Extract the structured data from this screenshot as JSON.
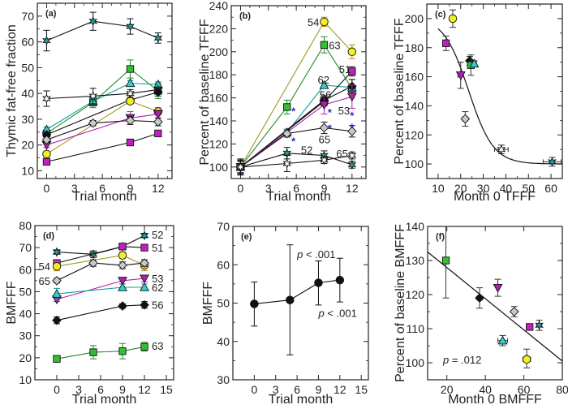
{
  "figure": {
    "panel_labels": [
      "(a)",
      "(b)",
      "(c)",
      "(d)",
      "(e)",
      "(f)"
    ]
  },
  "subjects": {
    "s51": {
      "label": "51",
      "marker": "square",
      "color": "#c020c0",
      "line": "#111111"
    },
    "s52": {
      "label": "52",
      "marker": "star",
      "color": "#20a0a0",
      "line": "#111111"
    },
    "s53": {
      "label": "53",
      "marker": "triangle-down",
      "color": "#b020b0",
      "line": "#b020b0"
    },
    "s54": {
      "label": "54",
      "marker": "circle",
      "color": "#f0f020",
      "line": "#a09820"
    },
    "s56": {
      "label": "56",
      "marker": "diamond",
      "color": "#111111",
      "line": "#111111"
    },
    "s62": {
      "label": "62",
      "marker": "triangle-up",
      "color": "#30d0d0",
      "line": "#1a9a9a"
    },
    "s63": {
      "label": "63",
      "marker": "square",
      "color": "#30c030",
      "line": "#208a30"
    },
    "s65a": {
      "label": "65",
      "marker": "diamond",
      "color": "#c8c8c8",
      "line": "#111111"
    },
    "s65b": {
      "label": "65",
      "marker": "star",
      "color": "#ffffff",
      "line": "#111111"
    }
  },
  "chart_data": [
    {
      "id": "a",
      "type": "line",
      "panel_label": "(a)",
      "xlabel": "Trial month",
      "ylabel": "Thymic fat-free fraction",
      "xlim": [
        -1,
        13.5
      ],
      "ylim": [
        7,
        75
      ],
      "xticks": [
        0,
        3,
        6,
        9,
        12
      ],
      "yticks": [
        10,
        20,
        30,
        40,
        50,
        60,
        70
      ],
      "series": [
        {
          "subject": "s52",
          "x": [
            0,
            5,
            9,
            12
          ],
          "y": [
            60.5,
            68,
            66,
            61.5
          ],
          "err": [
            4,
            3.5,
            3,
            2
          ]
        },
        {
          "subject": "s63",
          "x": [
            0,
            5,
            9,
            12
          ],
          "y": [
            24.5,
            36.5,
            49.5,
            41
          ],
          "err": [
            1,
            2,
            3.5,
            3
          ]
        },
        {
          "subject": "s62",
          "x": [
            0,
            5,
            9,
            12
          ],
          "y": [
            26,
            37,
            44,
            43.5
          ],
          "err": [
            1,
            1,
            1,
            1
          ]
        },
        {
          "subject": "s65b",
          "x": [
            0,
            5,
            9,
            12
          ],
          "y": [
            38,
            39,
            40,
            41.5
          ],
          "err": [
            3,
            3,
            1.5,
            1
          ]
        },
        {
          "subject": "s56",
          "x": [
            0,
            9,
            12
          ],
          "y": [
            24,
            37.5,
            40.5
          ],
          "err": [
            1,
            1,
            1.5
          ]
        },
        {
          "subject": "s54",
          "x": [
            0,
            9,
            12
          ],
          "y": [
            16.5,
            37,
            33
          ],
          "err": [
            1,
            1,
            1.5
          ]
        },
        {
          "subject": "s53",
          "x": [
            0,
            9,
            12
          ],
          "y": [
            20,
            30.5,
            32
          ],
          "err": [
            1,
            2.5,
            1.5
          ]
        },
        {
          "subject": "s65a",
          "x": [
            0,
            5,
            9,
            12
          ],
          "y": [
            22,
            28.5,
            29.5,
            29
          ],
          "err": [
            1,
            1,
            1.5,
            1.5
          ]
        },
        {
          "subject": "s51",
          "x": [
            0,
            9,
            12
          ],
          "y": [
            13.5,
            21,
            24.5
          ],
          "err": [
            0.7,
            0.7,
            1
          ]
        }
      ]
    },
    {
      "id": "b",
      "type": "line",
      "panel_label": "(b)",
      "xlabel": "Trial month",
      "ylabel": "Percent of baseline TFFF",
      "xlim": [
        -1,
        13.5
      ],
      "ylim": [
        90,
        240
      ],
      "xticks": [
        0,
        3,
        6,
        9,
        12
      ],
      "yticks": [
        100,
        120,
        140,
        160,
        180,
        200,
        220,
        240
      ],
      "series": [
        {
          "subject": "s54",
          "x": [
            0,
            9,
            12
          ],
          "y": [
            100,
            226,
            200
          ],
          "err": [
            6,
            4,
            6
          ]
        },
        {
          "subject": "s63",
          "x": [
            0,
            5,
            9,
            12
          ],
          "y": [
            100,
            152,
            206,
            168
          ],
          "err": [
            6,
            6,
            7,
            8
          ]
        },
        {
          "subject": "s62",
          "x": [
            0,
            5,
            9,
            12
          ],
          "y": [
            100,
            130,
            171,
            169
          ],
          "err": [
            5,
            3,
            2,
            2
          ]
        },
        {
          "subject": "s51",
          "x": [
            0,
            9,
            12
          ],
          "y": [
            100,
            157,
            183
          ],
          "err": [
            5,
            4,
            4
          ]
        },
        {
          "subject": "s56",
          "x": [
            0,
            9,
            12
          ],
          "y": [
            100,
            158,
            170
          ],
          "err": [
            5,
            4,
            6
          ]
        },
        {
          "subject": "s53",
          "x": [
            0,
            9,
            12
          ],
          "y": [
            100,
            154,
            161
          ],
          "err": [
            5,
            8,
            10
          ]
        },
        {
          "subject": "s65a",
          "x": [
            0,
            5,
            9,
            12
          ],
          "y": [
            100,
            129,
            134,
            131
          ],
          "err": [
            5,
            3,
            5,
            5
          ]
        },
        {
          "subject": "s52",
          "x": [
            0,
            5,
            9,
            12
          ],
          "y": [
            100,
            112,
            110,
            102
          ],
          "err": [
            6,
            5,
            4,
            3
          ]
        },
        {
          "subject": "s65b",
          "x": [
            0,
            5,
            9,
            12
          ],
          "y": [
            100,
            103,
            106,
            110
          ],
          "err": [
            7,
            7,
            3,
            3
          ]
        }
      ],
      "annotations": [
        {
          "text": "54",
          "x": 7.2,
          "y": 226
        },
        {
          "text": "63",
          "x": 9.5,
          "y": 206
        },
        {
          "text": "51",
          "x": 10.6,
          "y": 185
        },
        {
          "text": "62",
          "x": 8.3,
          "y": 176
        },
        {
          "text": "56",
          "x": 8.5,
          "y": 163
        },
        {
          "text": "53",
          "x": 10.5,
          "y": 149
        },
        {
          "text": "65",
          "x": 8.4,
          "y": 124
        },
        {
          "text": "52",
          "x": 6.5,
          "y": 115
        },
        {
          "text": "65",
          "x": 10.3,
          "y": 112
        }
      ],
      "significance_marks": [
        {
          "text": "*",
          "x": 5.7,
          "y": 151
        },
        {
          "text": "*",
          "x": 5.7,
          "y": 125
        },
        {
          "text": "*",
          "x": 9.6,
          "y": 150
        },
        {
          "text": "*",
          "x": 9.6,
          "y": 136
        },
        {
          "text": "*",
          "x": 12,
          "y": 147
        },
        {
          "text": "*",
          "x": 12,
          "y": 137
        }
      ]
    },
    {
      "id": "c",
      "type": "scatter",
      "panel_label": "(c)",
      "xlabel": "Month 0 TFFF",
      "ylabel": "Percent of baseline TFFF",
      "xlim": [
        5,
        65
      ],
      "ylim": [
        90,
        210
      ],
      "xticks": [
        10,
        20,
        30,
        40,
        50,
        60
      ],
      "yticks": [
        100,
        120,
        140,
        160,
        180,
        200
      ],
      "points": [
        {
          "subject": "s54",
          "x": 16.5,
          "y": 200,
          "yerr": 6,
          "xerr": 0.8
        },
        {
          "subject": "s51",
          "x": 13.5,
          "y": 183,
          "yerr": 5,
          "xerr": 0.7
        },
        {
          "subject": "s53",
          "x": 20,
          "y": 161,
          "yerr": 9,
          "xerr": 1.2
        },
        {
          "subject": "s56",
          "x": 24,
          "y": 171,
          "yerr": 3,
          "xerr": 1
        },
        {
          "subject": "s63",
          "x": 24.5,
          "y": 168,
          "yerr": 7,
          "xerr": 1
        },
        {
          "subject": "s62",
          "x": 26,
          "y": 169,
          "yerr": 2,
          "xerr": 1
        },
        {
          "subject": "s65a",
          "x": 22,
          "y": 131,
          "yerr": 5,
          "xerr": 1.2
        },
        {
          "subject": "s65b",
          "x": 38,
          "y": 110,
          "yerr": 3,
          "xerr": 3
        },
        {
          "subject": "s52",
          "x": 60.5,
          "y": 101.5,
          "yerr": 3,
          "xerr": 4
        }
      ],
      "fit_curve": {
        "type": "sigmoid",
        "x_start": 10,
        "x_end": 65,
        "top": 201,
        "bottom": 100,
        "midpoint": 23.5,
        "slope": 5.5
      }
    },
    {
      "id": "d",
      "type": "line",
      "panel_label": "(d)",
      "xlabel": "Trial month",
      "ylabel": "BMFFF",
      "xlim": [
        -3,
        16
      ],
      "ylim": [
        10,
        80
      ],
      "xticks": [
        0,
        3,
        6,
        9,
        12,
        15
      ],
      "yticks": [
        10,
        20,
        30,
        40,
        50,
        60,
        70,
        80
      ],
      "series": [
        {
          "subject": "s52",
          "x": [
            0,
            5,
            9,
            12
          ],
          "y": [
            68,
            67,
            70.5,
            75.5
          ],
          "err": [
            1,
            1.5,
            1,
            1
          ]
        },
        {
          "subject": "s51",
          "x": [
            0,
            9,
            12
          ],
          "y": [
            63,
            70.5,
            70
          ],
          "err": [
            1,
            1,
            1
          ]
        },
        {
          "subject": "s54",
          "x": [
            0,
            9,
            12
          ],
          "y": [
            61.5,
            66.5,
            62
          ],
          "err": [
            2,
            1.5,
            2.5
          ]
        },
        {
          "subject": "s65a",
          "x": [
            0,
            5,
            9,
            12
          ],
          "y": [
            55,
            63,
            62,
            63
          ],
          "err": [
            1,
            1.5,
            1.5,
            1.5
          ]
        },
        {
          "subject": "s53",
          "x": [
            0,
            9,
            12
          ],
          "y": [
            46.5,
            55,
            56
          ],
          "err": [
            1,
            1.5,
            1.5
          ]
        },
        {
          "subject": "s62",
          "x": [
            0,
            9,
            12
          ],
          "y": [
            49,
            52,
            52
          ],
          "err": [
            2.5,
            1.5,
            1.5
          ]
        },
        {
          "subject": "s56",
          "x": [
            0,
            9,
            12
          ],
          "y": [
            37,
            43.5,
            44
          ],
          "err": [
            1.5,
            1,
            1.5
          ]
        },
        {
          "subject": "s63",
          "x": [
            0,
            5,
            9,
            12
          ],
          "y": [
            19.5,
            22.5,
            23,
            25
          ],
          "err": [
            1.5,
            3,
            3.5,
            2
          ]
        }
      ],
      "annotations": [
        {
          "text": "52",
          "x": 13,
          "y": 76
        },
        {
          "text": "51",
          "x": 13,
          "y": 70
        },
        {
          "text": "54",
          "x": -2.5,
          "y": 61.5
        },
        {
          "text": "65",
          "x": -2.5,
          "y": 55
        },
        {
          "text": "53",
          "x": 13,
          "y": 56
        },
        {
          "text": "62",
          "x": 13,
          "y": 52
        },
        {
          "text": "56",
          "x": 13,
          "y": 44
        },
        {
          "text": "63",
          "x": 13,
          "y": 25.5
        }
      ]
    },
    {
      "id": "e",
      "type": "line",
      "panel_label": "(e)",
      "xlabel": "Trial month",
      "ylabel": "BMFFF",
      "xlim": [
        -3,
        16
      ],
      "ylim": [
        30,
        70
      ],
      "xticks": [
        0,
        3,
        6,
        9,
        12,
        15
      ],
      "yticks": [
        30,
        40,
        50,
        60,
        70
      ],
      "series": [
        {
          "name": "mean",
          "x": [
            0,
            5,
            9,
            12
          ],
          "y": [
            49.8,
            50.8,
            55.3,
            56
          ],
          "err_low": [
            44,
            36.5,
            49.5,
            50.3
          ],
          "err_high": [
            55.5,
            65.2,
            61,
            61.7
          ]
        }
      ],
      "annotations": [
        {
          "text": "p < .001",
          "x": 6,
          "y": 62.8
        },
        {
          "text": "p < .001",
          "x": 9,
          "y": 47.5
        }
      ]
    },
    {
      "id": "f",
      "type": "scatter",
      "panel_label": "(f)",
      "xlabel": "Month 0 BMFFF",
      "ylabel": "Percent of baseline BMFFF",
      "xlim": [
        10,
        80
      ],
      "ylim": [
        95,
        140
      ],
      "xticks": [
        20,
        40,
        60,
        80
      ],
      "yticks": [
        100,
        110,
        120,
        130,
        140
      ],
      "points": [
        {
          "subject": "s63",
          "x": 19.5,
          "y": 130,
          "yerr_low": 11,
          "yerr_high": 10,
          "xerr": 0.5
        },
        {
          "subject": "s56",
          "x": 37,
          "y": 119,
          "yerr_low": 3,
          "yerr_high": 3,
          "xerr": 1.3
        },
        {
          "subject": "s53",
          "x": 46.5,
          "y": 122,
          "yerr_low": 2.5,
          "yerr_high": 2.5,
          "xerr": 0.7
        },
        {
          "subject": "s65a",
          "x": 55,
          "y": 115,
          "yerr_low": 1.5,
          "yerr_high": 1.5,
          "xerr": 0.7
        },
        {
          "subject": "s62",
          "x": 49,
          "y": 106.5,
          "yerr_low": 1.5,
          "yerr_high": 1.5,
          "xerr": 2.5
        },
        {
          "subject": "s51",
          "x": 63,
          "y": 110.5,
          "yerr_low": 0.5,
          "yerr_high": 0.5,
          "xerr": 0.7
        },
        {
          "subject": "s52",
          "x": 68,
          "y": 111,
          "yerr_low": 1.5,
          "yerr_high": 1.5,
          "xerr": 1.3
        },
        {
          "subject": "s54",
          "x": 61.5,
          "y": 101,
          "yerr_low": 2.5,
          "yerr_high": 3,
          "xerr": 2
        }
      ],
      "fit_line": {
        "x": [
          10,
          80
        ],
        "y": [
          132.5,
          100.5
        ]
      },
      "annotations": [
        {
          "text": "p = .012",
          "x": 18,
          "y": 101
        }
      ]
    }
  ]
}
